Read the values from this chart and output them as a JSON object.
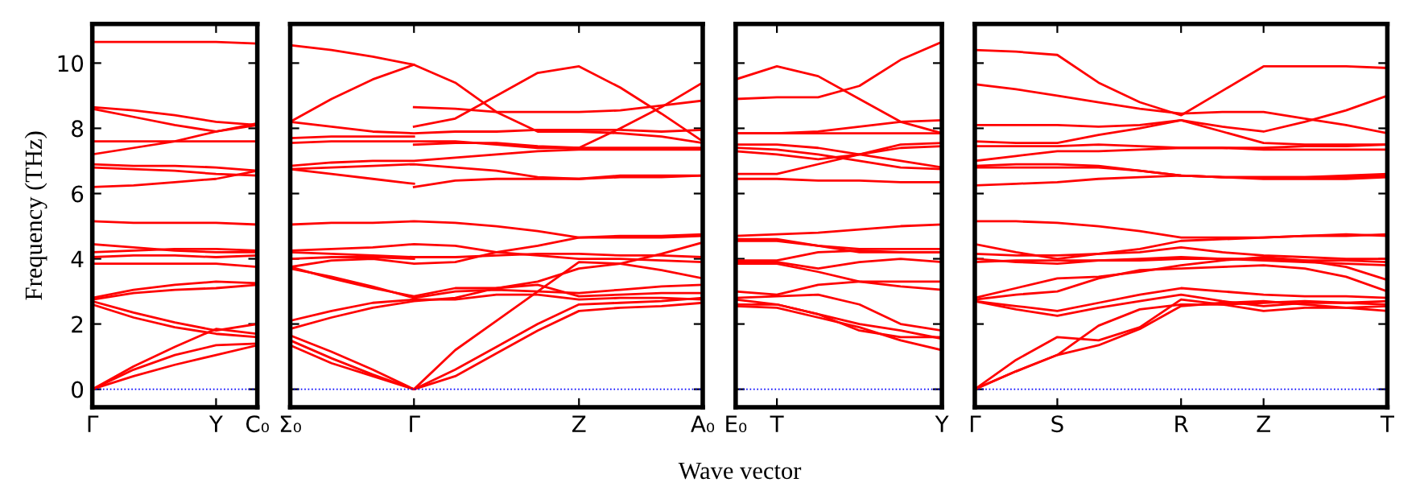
{
  "chart_data": [
    {
      "type": "line",
      "ylabel": "Frequency (THz)",
      "categories": [
        "Γ",
        null,
        null,
        "Y",
        "C₀"
      ],
      "ylim": [
        -0.55,
        11.2
      ],
      "yticks": [
        0,
        2,
        4,
        6,
        8,
        10
      ],
      "ref_lines": [
        {
          "axis": "y",
          "value": 0,
          "color": "#0000ff",
          "line_style": "dotted"
        }
      ],
      "series": [
        {
          "color": "#ff0000",
          "values": [
            10.65,
            10.65,
            10.65,
            10.65,
            10.6
          ]
        },
        {
          "color": "#ff0000",
          "values": [
            8.65,
            8.55,
            8.4,
            8.2,
            8.1
          ]
        },
        {
          "color": "#ff0000",
          "values": [
            8.6,
            8.35,
            8.1,
            7.9,
            8.15
          ]
        },
        {
          "color": "#ff0000",
          "values": [
            7.6,
            7.6,
            7.6,
            7.6,
            7.6
          ]
        },
        {
          "color": "#ff0000",
          "values": [
            7.2,
            7.4,
            7.6,
            7.9,
            8.1
          ]
        },
        {
          "color": "#ff0000",
          "values": [
            6.9,
            6.85,
            6.85,
            6.8,
            6.7
          ]
        },
        {
          "color": "#ff0000",
          "values": [
            6.8,
            6.75,
            6.7,
            6.6,
            6.55
          ]
        },
        {
          "color": "#ff0000",
          "values": [
            6.2,
            6.25,
            6.35,
            6.45,
            6.7
          ]
        },
        {
          "color": "#ff0000",
          "values": [
            5.15,
            5.1,
            5.1,
            5.1,
            5.05
          ]
        },
        {
          "color": "#ff0000",
          "values": [
            4.45,
            4.35,
            4.25,
            4.2,
            4.2
          ]
        },
        {
          "color": "#ff0000",
          "values": [
            4.2,
            4.25,
            4.3,
            4.3,
            4.25
          ]
        },
        {
          "color": "#ff0000",
          "values": [
            4.05,
            4.1,
            4.1,
            4.05,
            4.1
          ]
        },
        {
          "color": "#ff0000",
          "values": [
            3.85,
            3.85,
            3.85,
            3.85,
            3.75
          ]
        },
        {
          "color": "#ff0000",
          "values": [
            2.8,
            3.05,
            3.2,
            3.3,
            3.25
          ]
        },
        {
          "color": "#ff0000",
          "values": [
            2.75,
            2.95,
            3.05,
            3.1,
            3.2
          ]
        },
        {
          "color": "#ff0000",
          "values": [
            2.7,
            2.35,
            2.05,
            1.8,
            2.0
          ]
        },
        {
          "color": "#ff0000",
          "values": [
            2.6,
            2.2,
            1.9,
            1.7,
            1.6
          ]
        },
        {
          "color": "#ff0000",
          "values": [
            0,
            0.7,
            1.3,
            1.85,
            1.7
          ]
        },
        {
          "color": "#ff0000",
          "values": [
            0,
            0.6,
            1.05,
            1.35,
            1.4
          ]
        },
        {
          "color": "#ff0000",
          "values": [
            0,
            0.4,
            0.75,
            1.05,
            1.35
          ]
        }
      ]
    },
    {
      "type": "line",
      "tick_labels": "x",
      "categories": [
        "Σ₀",
        null,
        null,
        "Γ",
        null,
        null,
        null,
        "Z",
        null,
        null,
        "A₀"
      ],
      "ylim": [
        -0.55,
        11.2
      ],
      "yticks": [
        0,
        2,
        4,
        6,
        8,
        10
      ],
      "ref_lines": [
        {
          "axis": "y",
          "value": 0,
          "color": "#0000ff",
          "line_style": "dotted"
        }
      ],
      "series": [
        {
          "color": "#ff0000",
          "values": [
            10.55,
            10.4,
            10.2,
            9.95,
            9.4,
            8.5,
            7.9,
            7.9,
            7.85,
            7.75,
            7.55
          ]
        },
        {
          "color": "#ff0000",
          "values": [
            8.2,
            8.9,
            9.5,
            9.95,
            null,
            null,
            null,
            null,
            null,
            null,
            null
          ]
        },
        {
          "color": "#ff0000",
          "values": [
            null,
            null,
            null,
            8.65,
            8.6,
            8.5,
            8.5,
            8.5,
            8.55,
            8.7,
            8.85
          ]
        },
        {
          "color": "#ff0000",
          "values": [
            null,
            null,
            null,
            8.05,
            8.3,
            9.0,
            9.7,
            9.9,
            9.25,
            8.45,
            7.6
          ]
        },
        {
          "color": "#ff0000",
          "values": [
            7.55,
            7.6,
            7.6,
            7.6,
            7.6,
            7.5,
            7.4,
            7.4,
            8.0,
            8.65,
            9.4
          ]
        },
        {
          "color": "#ff0000",
          "values": [
            8.2,
            8.05,
            7.9,
            7.85,
            7.9,
            7.9,
            7.95,
            7.95,
            7.95,
            7.9,
            7.95
          ]
        },
        {
          "color": "#ff0000",
          "values": [
            7.7,
            7.75,
            7.75,
            7.75,
            null,
            null,
            null,
            null,
            null,
            null,
            null
          ]
        },
        {
          "color": "#ff0000",
          "values": [
            null,
            null,
            null,
            7.5,
            7.55,
            7.55,
            7.45,
            7.4,
            7.4,
            7.4,
            7.4
          ]
        },
        {
          "color": "#ff0000",
          "values": [
            6.85,
            6.95,
            7.0,
            7.0,
            7.1,
            7.2,
            7.3,
            7.35,
            7.35,
            7.35,
            7.35
          ]
        },
        {
          "color": "#ff0000",
          "values": [
            6.75,
            6.8,
            6.85,
            6.9,
            6.8,
            6.7,
            6.5,
            6.45,
            6.5,
            6.5,
            6.55
          ]
        },
        {
          "color": "#ff0000",
          "values": [
            6.75,
            6.6,
            6.45,
            6.3,
            null,
            null,
            null,
            null,
            null,
            null,
            null
          ]
        },
        {
          "color": "#ff0000",
          "values": [
            null,
            null,
            null,
            6.2,
            6.4,
            6.45,
            6.45,
            6.45,
            6.55,
            6.55,
            6.55
          ]
        },
        {
          "color": "#ff0000",
          "values": [
            5.05,
            5.1,
            5.1,
            5.15,
            5.1,
            5.0,
            4.85,
            4.65,
            4.65,
            4.65,
            4.7
          ]
        },
        {
          "color": "#ff0000",
          "values": [
            4.25,
            4.3,
            4.35,
            4.45,
            4.4,
            4.2,
            4.1,
            4.0,
            4.0,
            3.95,
            3.9
          ]
        },
        {
          "color": "#ff0000",
          "values": [
            4.2,
            4.15,
            4.1,
            4.05,
            4.05,
            4.1,
            4.15,
            4.15,
            4.1,
            4.1,
            4.05
          ]
        },
        {
          "color": "#ff0000",
          "values": [
            4.0,
            4.05,
            4.05,
            4.0,
            null,
            null,
            null,
            null,
            null,
            null,
            null
          ]
        },
        {
          "color": "#ff0000",
          "values": [
            3.75,
            3.95,
            4.0,
            3.85,
            3.9,
            4.2,
            4.4,
            4.65,
            4.7,
            4.7,
            4.75
          ]
        },
        {
          "color": "#ff0000",
          "values": [
            3.75,
            3.4,
            3.1,
            2.85,
            3.1,
            3.1,
            3.3,
            3.7,
            3.85,
            4.15,
            4.5
          ]
        },
        {
          "color": "#ff0000",
          "values": [
            3.7,
            3.45,
            3.15,
            2.8,
            3.0,
            3.05,
            3.0,
            2.95,
            3.05,
            3.15,
            3.2
          ]
        },
        {
          "color": "#ff0000",
          "values": [
            1.85,
            2.2,
            2.5,
            2.7,
            2.8,
            3.1,
            3.2,
            2.85,
            2.9,
            2.95,
            2.95
          ]
        },
        {
          "color": "#ff0000",
          "values": [
            2.1,
            2.4,
            2.65,
            2.75,
            2.75,
            2.9,
            2.9,
            2.75,
            2.8,
            2.8,
            2.75
          ]
        },
        {
          "color": "#ff0000",
          "values": [
            1.65,
            1.15,
            0.6,
            0,
            1.2,
            2.1,
            3.0,
            3.9,
            3.85,
            3.65,
            3.4
          ]
        },
        {
          "color": "#ff0000",
          "values": [
            1.5,
            0.95,
            0.45,
            0,
            0.6,
            1.3,
            2.0,
            2.6,
            2.65,
            2.7,
            2.8
          ]
        },
        {
          "color": "#ff0000",
          "values": [
            1.35,
            0.8,
            0.4,
            0,
            0.4,
            1.1,
            1.8,
            2.4,
            2.5,
            2.55,
            2.65
          ]
        }
      ]
    },
    {
      "type": "line",
      "tick_labels": "x",
      "xlabel": "Wave vector",
      "categories": [
        "E₀",
        "T",
        null,
        null,
        null,
        "Y"
      ],
      "ylim": [
        -0.55,
        11.2
      ],
      "yticks": [
        0,
        2,
        4,
        6,
        8,
        10
      ],
      "ref_lines": [
        {
          "axis": "y",
          "value": 0,
          "color": "#0000ff",
          "line_style": "dotted"
        }
      ],
      "series": [
        {
          "color": "#ff0000",
          "values": [
            9.5,
            9.9,
            9.6,
            8.9,
            8.2,
            7.85
          ]
        },
        {
          "color": "#ff0000",
          "values": [
            8.9,
            8.95,
            8.95,
            9.3,
            10.1,
            10.65
          ]
        },
        {
          "color": "#ff0000",
          "values": [
            7.85,
            7.85,
            7.9,
            8.05,
            8.2,
            8.25
          ]
        },
        {
          "color": "#ff0000",
          "values": [
            7.85,
            7.85,
            7.85,
            7.85,
            7.85,
            7.85
          ]
        },
        {
          "color": "#ff0000",
          "values": [
            7.5,
            7.5,
            7.4,
            7.2,
            7.0,
            6.8
          ]
        },
        {
          "color": "#ff0000",
          "values": [
            7.4,
            7.35,
            7.2,
            7.0,
            6.8,
            6.75
          ]
        },
        {
          "color": "#ff0000",
          "values": [
            7.3,
            7.2,
            7.05,
            7.2,
            7.5,
            7.55
          ]
        },
        {
          "color": "#ff0000",
          "values": [
            6.6,
            6.6,
            6.9,
            7.2,
            7.4,
            7.45
          ]
        },
        {
          "color": "#ff0000",
          "values": [
            6.45,
            6.45,
            6.4,
            6.4,
            6.35,
            6.35
          ]
        },
        {
          "color": "#ff0000",
          "values": [
            4.7,
            4.75,
            4.8,
            4.9,
            5.0,
            5.05
          ]
        },
        {
          "color": "#ff0000",
          "values": [
            4.6,
            4.6,
            4.4,
            4.2,
            4.2,
            4.2
          ]
        },
        {
          "color": "#ff0000",
          "values": [
            4.55,
            4.55,
            4.4,
            4.3,
            4.3,
            4.3
          ]
        },
        {
          "color": "#ff0000",
          "values": [
            3.95,
            3.95,
            4.2,
            4.25,
            4.2,
            4.2
          ]
        },
        {
          "color": "#ff0000",
          "values": [
            3.9,
            3.9,
            3.7,
            3.9,
            4.0,
            3.9
          ]
        },
        {
          "color": "#ff0000",
          "values": [
            3.85,
            3.85,
            3.6,
            3.3,
            3.15,
            3.05
          ]
        },
        {
          "color": "#ff0000",
          "values": [
            3.0,
            2.9,
            3.2,
            3.3,
            3.3,
            3.3
          ]
        },
        {
          "color": "#ff0000",
          "values": [
            2.8,
            2.85,
            2.9,
            2.6,
            2.0,
            1.8
          ]
        },
        {
          "color": "#ff0000",
          "values": [
            2.75,
            2.6,
            2.3,
            1.8,
            1.6,
            1.6
          ]
        },
        {
          "color": "#ff0000",
          "values": [
            2.55,
            2.5,
            2.2,
            1.9,
            1.5,
            1.2
          ]
        },
        {
          "color": "#ff0000",
          "values": [
            2.6,
            2.6,
            2.3,
            2.0,
            1.8,
            1.55
          ]
        }
      ]
    },
    {
      "type": "line",
      "tick_labels": "x",
      "categories": [
        "Γ",
        null,
        "S",
        null,
        null,
        "R",
        null,
        "Z",
        null,
        null,
        "T"
      ],
      "ylim": [
        -0.55,
        11.2
      ],
      "yticks": [
        0,
        2,
        4,
        6,
        8,
        10
      ],
      "ref_lines": [
        {
          "axis": "y",
          "value": 0,
          "color": "#0000ff",
          "line_style": "dotted"
        }
      ],
      "series": [
        {
          "color": "#ff0000",
          "values": [
            10.4,
            10.35,
            10.25,
            9.4,
            8.8,
            8.4,
            9.15,
            9.9,
            9.9,
            9.9,
            9.85
          ]
        },
        {
          "color": "#ff0000",
          "values": [
            9.35,
            9.2,
            9.0,
            8.8,
            8.6,
            8.45,
            8.5,
            8.5,
            8.3,
            8.1,
            7.85
          ]
        },
        {
          "color": "#ff0000",
          "values": [
            8.1,
            8.1,
            8.1,
            8.05,
            8.1,
            8.25,
            7.9,
            7.55,
            7.5,
            7.5,
            7.5
          ]
        },
        {
          "color": "#ff0000",
          "values": [
            7.6,
            7.55,
            7.55,
            7.8,
            8.0,
            8.25,
            8.05,
            7.9,
            8.2,
            8.55,
            9.0
          ]
        },
        {
          "color": "#ff0000",
          "values": [
            7.45,
            7.45,
            7.45,
            7.5,
            7.45,
            7.4,
            7.4,
            7.4,
            7.45,
            7.45,
            7.5
          ]
        },
        {
          "color": "#ff0000",
          "values": [
            7.0,
            7.15,
            7.3,
            7.3,
            7.35,
            7.4,
            7.4,
            7.35,
            7.35,
            7.35,
            7.35
          ]
        },
        {
          "color": "#ff0000",
          "values": [
            6.8,
            6.8,
            6.8,
            6.8,
            6.7,
            6.55,
            6.5,
            6.5,
            6.5,
            6.55,
            6.6
          ]
        },
        {
          "color": "#ff0000",
          "values": [
            6.85,
            6.9,
            6.9,
            6.85,
            6.7,
            6.55,
            6.5,
            6.45,
            6.45,
            6.45,
            6.5
          ]
        },
        {
          "color": "#ff0000",
          "values": [
            6.25,
            6.3,
            6.35,
            6.45,
            6.5,
            6.55,
            6.5,
            6.5,
            6.5,
            6.5,
            6.55
          ]
        },
        {
          "color": "#ff0000",
          "values": [
            5.15,
            5.15,
            5.1,
            5.0,
            4.85,
            4.65,
            4.65,
            4.65,
            4.7,
            4.7,
            4.75
          ]
        },
        {
          "color": "#ff0000",
          "values": [
            4.45,
            4.2,
            4.0,
            4.15,
            4.3,
            4.55,
            4.6,
            4.65,
            4.7,
            4.75,
            4.7
          ]
        },
        {
          "color": "#ff0000",
          "values": [
            4.15,
            4.1,
            4.1,
            4.15,
            4.2,
            4.35,
            4.2,
            4.1,
            4.05,
            4.0,
            4.0
          ]
        },
        {
          "color": "#ff0000",
          "values": [
            4.0,
            3.9,
            3.85,
            3.95,
            4.0,
            4.05,
            4.0,
            3.95,
            3.9,
            3.85,
            3.8
          ]
        },
        {
          "color": "#ff0000",
          "values": [
            3.9,
            3.95,
            3.95,
            3.95,
            3.95,
            4.0,
            4.0,
            4.0,
            3.95,
            3.95,
            3.9
          ]
        },
        {
          "color": "#ff0000",
          "values": [
            2.8,
            3.1,
            3.4,
            3.45,
            3.6,
            3.8,
            3.95,
            4.05,
            3.95,
            3.75,
            3.35
          ]
        },
        {
          "color": "#ff0000",
          "values": [
            2.75,
            2.9,
            3.0,
            3.4,
            3.65,
            3.7,
            3.75,
            3.8,
            3.7,
            3.45,
            3.0
          ]
        },
        {
          "color": "#ff0000",
          "values": [
            2.7,
            2.55,
            2.4,
            2.65,
            2.9,
            3.1,
            3.0,
            2.9,
            2.85,
            2.85,
            2.8
          ]
        },
        {
          "color": "#ff0000",
          "values": [
            2.7,
            2.45,
            2.25,
            2.5,
            2.7,
            2.9,
            2.7,
            2.55,
            2.65,
            2.65,
            2.6
          ]
        },
        {
          "color": "#ff0000",
          "values": [
            0,
            0.9,
            1.6,
            1.5,
            1.9,
            2.75,
            2.6,
            2.4,
            2.5,
            2.5,
            2.4
          ]
        },
        {
          "color": "#ff0000",
          "values": [
            0,
            0.55,
            1.05,
            1.35,
            1.85,
            2.55,
            2.65,
            2.7,
            2.6,
            2.5,
            2.55
          ]
        },
        {
          "color": "#ff0000",
          "values": [
            0,
            0.55,
            1.05,
            1.95,
            2.45,
            2.6,
            2.6,
            2.65,
            2.7,
            2.65,
            2.7
          ]
        }
      ]
    }
  ]
}
